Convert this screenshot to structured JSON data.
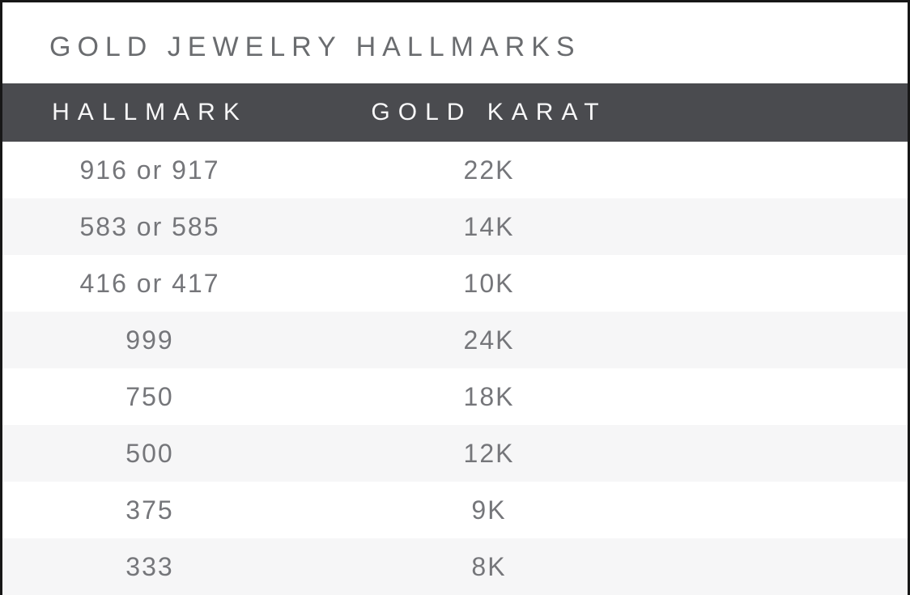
{
  "chart_data": {
    "type": "table",
    "title": "GOLD JEWELRY HALLMARKS",
    "columns": [
      "HALLMARK",
      "GOLD KARAT"
    ],
    "rows": [
      [
        "916 or 917",
        "22K"
      ],
      [
        "583 or 585",
        "14K"
      ],
      [
        "416 or 417",
        "10K"
      ],
      [
        "999",
        "24K"
      ],
      [
        "750",
        "18K"
      ],
      [
        "500",
        "12K"
      ],
      [
        "375",
        "9K"
      ],
      [
        "333",
        "8K"
      ]
    ],
    "layout_hints": {
      "striped_rows": true,
      "stripe_pattern": "even rows shaded light gray",
      "header_style": "dark bar with white letter-spaced uppercase text",
      "grid": "off"
    }
  },
  "colors": {
    "header_bg": "#4a4b4f",
    "header_text": "#f7f7f8",
    "title_text": "#6a6c6f",
    "body_text": "#75767a",
    "stripe_bg": "#f6f6f7",
    "border_color": "#171717",
    "card_bg": "#ffffff"
  }
}
